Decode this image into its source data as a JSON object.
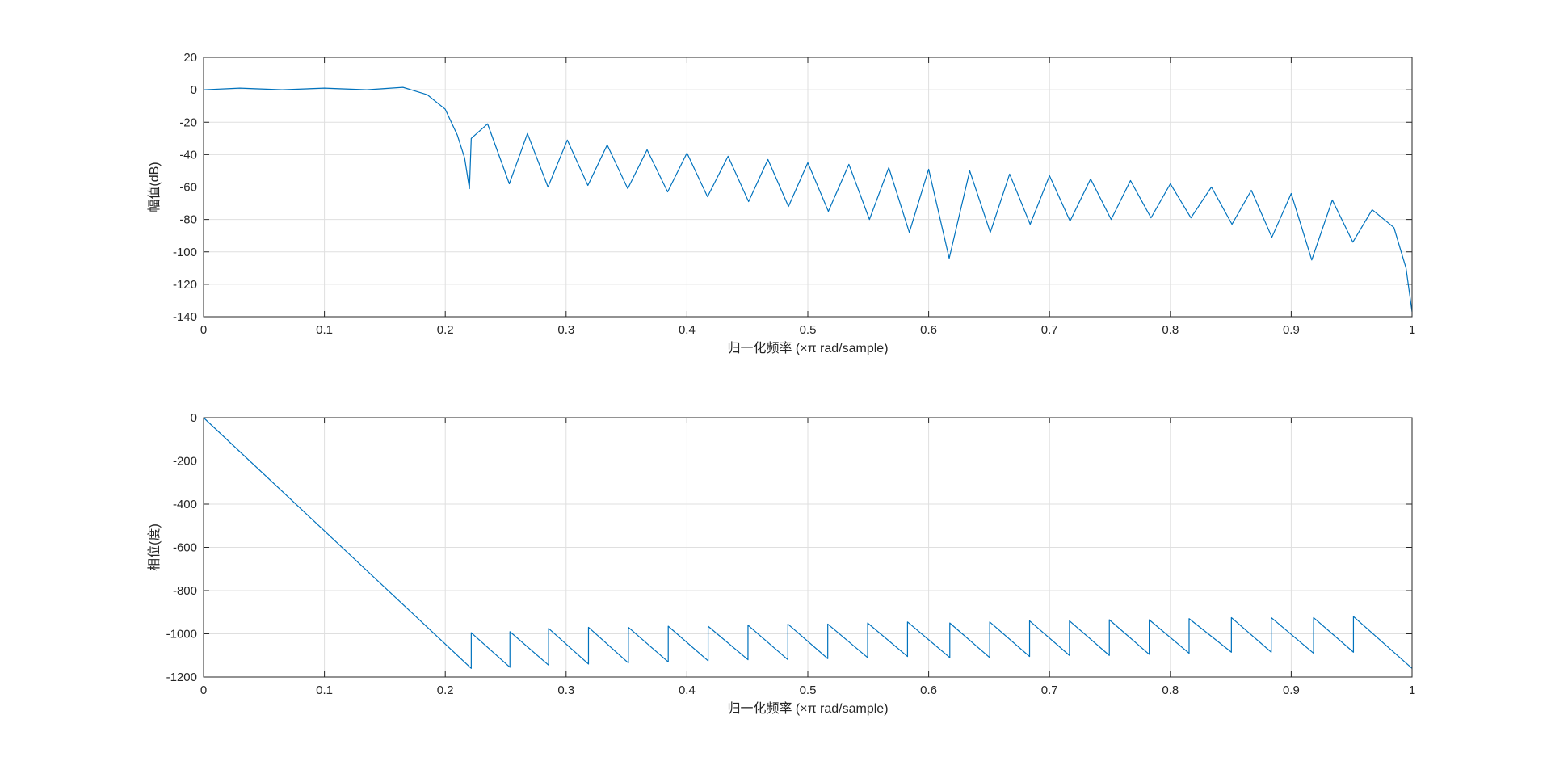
{
  "colors": {
    "line": "#0072BD",
    "axis": "#262626",
    "grid": "#dfdfdf",
    "background": "#ffffff"
  },
  "chart_data": [
    {
      "type": "line",
      "title": "",
      "xlabel": "归一化频率 (×π rad/sample)",
      "ylabel": "幅值(dB)",
      "xlim": [
        0,
        1
      ],
      "ylim": [
        -140,
        20
      ],
      "xticks": [
        "0",
        "0.1",
        "0.2",
        "0.3",
        "0.4",
        "0.5",
        "0.6",
        "0.7",
        "0.8",
        "0.9",
        "1"
      ],
      "yticks": [
        "20",
        "0",
        "-20",
        "-40",
        "-60",
        "-80",
        "-100",
        "-120",
        "-140"
      ],
      "grid": true,
      "series": [
        {
          "x": [
            0,
            0.03,
            0.065,
            0.1,
            0.135,
            0.165,
            0.185,
            0.2,
            0.21,
            0.216,
            0.22,
            0.2215,
            0.235,
            0.253,
            0.268,
            0.285,
            0.301,
            0.318,
            0.334,
            0.351,
            0.367,
            0.384,
            0.4,
            0.417,
            0.434,
            0.451,
            0.467,
            0.484,
            0.5,
            0.517,
            0.534,
            0.551,
            0.567,
            0.584,
            0.6,
            0.617,
            0.634,
            0.651,
            0.667,
            0.684,
            0.7,
            0.717,
            0.734,
            0.751,
            0.767,
            0.784,
            0.8,
            0.817,
            0.834,
            0.851,
            0.867,
            0.884,
            0.9,
            0.917,
            0.934,
            0.951,
            0.967,
            0.985,
            0.995,
            1.0
          ],
          "y": [
            0,
            1,
            0,
            1,
            0,
            1.5,
            -3,
            -12,
            -28,
            -42,
            -61,
            -30,
            -21,
            -58,
            -27,
            -60,
            -31,
            -59,
            -34,
            -61,
            -37,
            -63,
            -39,
            -66,
            -41,
            -69,
            -43,
            -72,
            -45,
            -75,
            -46,
            -80,
            -48,
            -88,
            -49,
            -104,
            -50,
            -88,
            -52,
            -83,
            -53,
            -81,
            -55,
            -80,
            -56,
            -79,
            -58,
            -79,
            -60,
            -83,
            -62,
            -91,
            -64,
            -105,
            -68,
            -94,
            -74,
            -85,
            -110,
            -137
          ]
        }
      ]
    },
    {
      "type": "line",
      "title": "",
      "xlabel": "归一化频率 (×π rad/sample)",
      "ylabel": "相位(度)",
      "xlim": [
        0,
        1
      ],
      "ylim": [
        -1200,
        0
      ],
      "xticks": [
        "0",
        "0.1",
        "0.2",
        "0.3",
        "0.4",
        "0.5",
        "0.6",
        "0.7",
        "0.8",
        "0.9",
        "1"
      ],
      "yticks": [
        "0",
        "-200",
        "-400",
        "-600",
        "-800",
        "-1000",
        "-1200"
      ],
      "grid": true,
      "series": [
        {
          "x": [
            0,
            0.2215,
            0.2215,
            0.2535,
            0.2535,
            0.2855,
            0.2855,
            0.3185,
            0.3185,
            0.3515,
            0.3515,
            0.3845,
            0.3845,
            0.4175,
            0.4175,
            0.4505,
            0.4505,
            0.4835,
            0.4835,
            0.5165,
            0.5165,
            0.5495,
            0.5495,
            0.5825,
            0.5825,
            0.6175,
            0.6175,
            0.6505,
            0.6505,
            0.6835,
            0.6835,
            0.7165,
            0.7165,
            0.7495,
            0.7495,
            0.7825,
            0.7825,
            0.8155,
            0.8155,
            0.8505,
            0.8505,
            0.8835,
            0.8835,
            0.9185,
            0.9185,
            0.9515,
            0.9515,
            1.0
          ],
          "y": [
            0,
            -1160,
            -995,
            -1155,
            -990,
            -1145,
            -975,
            -1140,
            -970,
            -1135,
            -970,
            -1130,
            -965,
            -1125,
            -965,
            -1120,
            -960,
            -1120,
            -955,
            -1115,
            -955,
            -1110,
            -950,
            -1105,
            -945,
            -1110,
            -950,
            -1110,
            -945,
            -1105,
            -940,
            -1100,
            -940,
            -1100,
            -935,
            -1095,
            -935,
            -1090,
            -930,
            -1085,
            -925,
            -1085,
            -925,
            -1090,
            -925,
            -1085,
            -920,
            -1160
          ]
        }
      ]
    }
  ]
}
